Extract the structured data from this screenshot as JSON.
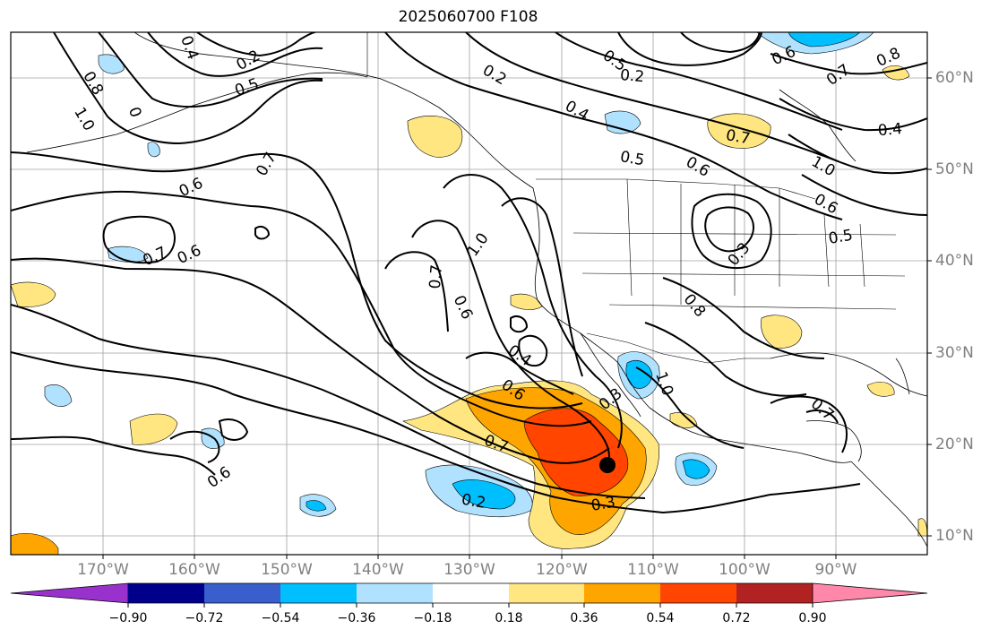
{
  "title": "2025060700 F108",
  "map": {
    "lon_labels": [
      "170°W",
      "160°W",
      "150°W",
      "140°W",
      "130°W",
      "120°W",
      "110°W",
      "100°W",
      "90°W"
    ],
    "lat_labels": [
      "60°N",
      "50°N",
      "40°N",
      "30°N",
      "20°N",
      "10°N"
    ],
    "contour_labels": [
      "0.4",
      "0.2",
      "0.5",
      "0.8",
      "1.0",
      "0",
      "0.7",
      "0.6",
      "0.6",
      "0.7",
      "0.6",
      "0.2",
      "0.4",
      "0.5",
      "0.6",
      "0.2",
      "0.5",
      "0.6",
      "0.7",
      "0.8",
      "0.7",
      "0.4",
      "1.0",
      "0.6",
      "0.5",
      "0.3",
      "0.7",
      "1.0",
      "0.6",
      "0.8",
      "0.4",
      "0.6",
      "1.0",
      "0.3",
      "0.7",
      "0.7",
      "0.3",
      "0.2",
      "-0.3",
      "0.2"
    ],
    "marker_label": ""
  },
  "colorbar": {
    "labels": [
      "−0.90",
      "−0.72",
      "−0.54",
      "−0.36",
      "−0.18",
      "0.18",
      "0.36",
      "0.54",
      "0.72",
      "0.90"
    ],
    "colors": [
      "#9932cc",
      "#00008b",
      "#3a5fcd",
      "#00bfff",
      "#b0e2ff",
      "#ffffff",
      "#ffe680",
      "#ffa500",
      "#ff4500",
      "#b22222",
      "#ff88aa"
    ]
  }
}
